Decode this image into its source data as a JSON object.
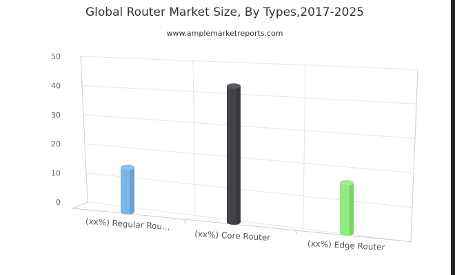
{
  "chart_data": {
    "type": "bar",
    "title": "Global Router Market Size, By Types,2017-2025",
    "subtitle": "www.amplemarketreports.com",
    "categories": [
      "(xx%) Regular Rou...",
      "(xx%) Core Router",
      "(xx%) Edge Router"
    ],
    "values": [
      15,
      46,
      17
    ],
    "colors": [
      "#7cb5ec",
      "#434348",
      "#90ed7d"
    ],
    "ylim": [
      0,
      50
    ],
    "yticks": [
      0,
      10,
      20,
      30,
      40,
      50
    ],
    "grid": true,
    "legend": "none",
    "style": "3d-cylinder"
  }
}
